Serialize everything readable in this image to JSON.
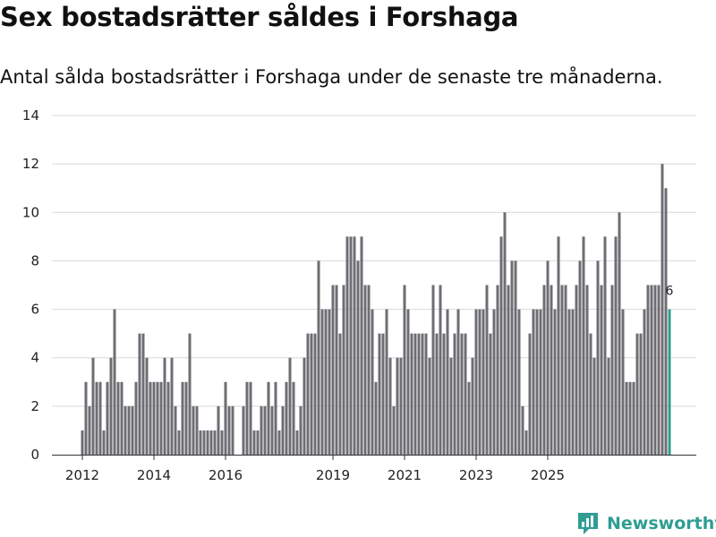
{
  "header": {
    "title": "Sex bostadsrätter såldes i Forshaga",
    "subtitle": "Antal sålda bostadsrätter i Forshaga under de senaste tre månaderna."
  },
  "footer": {
    "brand_name": "Newsworthy"
  },
  "colors": {
    "bar": "#6e6d73",
    "highlight": "#2a9d8f",
    "grid": "#d8d8d8",
    "brand": "#2f9d93"
  },
  "chart_data": {
    "type": "bar",
    "title": "Sex bostadsrätter såldes i Forshaga",
    "xlabel": "",
    "ylabel": "",
    "ylim": [
      0,
      14
    ],
    "yticks": [
      0,
      2,
      4,
      6,
      8,
      10,
      12,
      14
    ],
    "xticks": [
      {
        "label": "2012",
        "index": 0
      },
      {
        "label": "2014",
        "index": 20
      },
      {
        "label": "2016",
        "index": 40
      },
      {
        "label": "2019",
        "index": 70
      },
      {
        "label": "2021",
        "index": 90
      },
      {
        "label": "2023",
        "index": 110
      },
      {
        "label": "2025",
        "index": 130
      }
    ],
    "start_period": "2011-11",
    "highlight_label": "6",
    "values": [
      1,
      3,
      2,
      4,
      3,
      3,
      1,
      3,
      4,
      6,
      3,
      3,
      2,
      2,
      2,
      3,
      5,
      5,
      4,
      3,
      3,
      3,
      3,
      4,
      3,
      4,
      2,
      1,
      3,
      3,
      5,
      2,
      2,
      1,
      1,
      1,
      1,
      1,
      2,
      1,
      3,
      2,
      2,
      0,
      0,
      2,
      3,
      3,
      1,
      1,
      2,
      2,
      3,
      2,
      3,
      1,
      2,
      3,
      4,
      3,
      1,
      2,
      4,
      5,
      5,
      5,
      8,
      6,
      6,
      6,
      7,
      7,
      5,
      7,
      9,
      9,
      9,
      8,
      9,
      7,
      7,
      6,
      3,
      5,
      5,
      6,
      4,
      2,
      4,
      4,
      7,
      6,
      5,
      5,
      5,
      5,
      5,
      4,
      7,
      5,
      7,
      5,
      6,
      4,
      5,
      6,
      5,
      5,
      3,
      4,
      6,
      6,
      6,
      7,
      5,
      6,
      7,
      9,
      10,
      7,
      8,
      8,
      6,
      2,
      1,
      5,
      6,
      6,
      6,
      7,
      8,
      7,
      6,
      9,
      7,
      7,
      6,
      6,
      7,
      8,
      9,
      7,
      5,
      4,
      8,
      7,
      9,
      4,
      7,
      9,
      10,
      6,
      3,
      3,
      3,
      5,
      5,
      6,
      7,
      7,
      7,
      7,
      12,
      11,
      6
    ]
  }
}
